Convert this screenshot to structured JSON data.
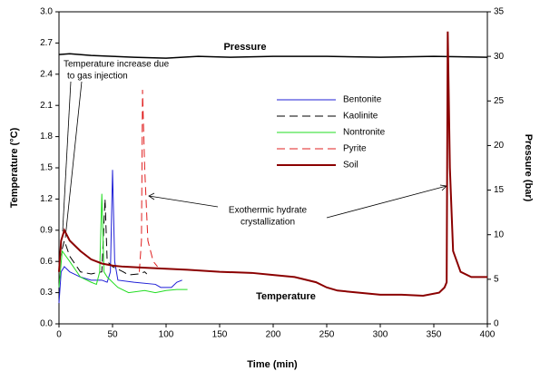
{
  "chart_data": {
    "type": "line",
    "xlabel": "Time (min)",
    "ylabel": "Temperature (°C)",
    "y2label": "Pressure (bar)",
    "xlim": [
      0,
      400
    ],
    "xticks": [
      0,
      50,
      100,
      150,
      200,
      250,
      300,
      350,
      400
    ],
    "ylim": [
      0,
      3
    ],
    "yticks": [
      {
        "value": 0,
        "label": "0.0"
      },
      0.3,
      0.6,
      0.9,
      1.2,
      1.5,
      1.8,
      2.1,
      2.4,
      2.7,
      {
        "value": 3,
        "label": "3.0"
      }
    ],
    "y2lim": [
      0,
      35
    ],
    "y2ticks": [
      0,
      5,
      10,
      15,
      20,
      25,
      30,
      35
    ],
    "legend": "center",
    "series": [
      {
        "name": "Bentonite",
        "color": "#1f1fd6",
        "dash": false,
        "x": [
          0,
          2,
          5,
          10,
          20,
          30,
          40,
          45,
          48,
          50,
          52,
          55,
          70,
          90,
          95,
          105,
          110,
          115
        ],
        "values": [
          0.2,
          0.5,
          0.55,
          0.5,
          0.45,
          0.42,
          0.42,
          0.4,
          0.5,
          1.48,
          0.6,
          0.42,
          0.4,
          0.38,
          0.35,
          0.35,
          0.4,
          0.42
        ]
      },
      {
        "name": "Kaolinite",
        "color": "#000000",
        "dash": true,
        "x": [
          0,
          5,
          10,
          20,
          30,
          40,
          43,
          45,
          50,
          60,
          65,
          75,
          80,
          82
        ],
        "values": [
          0.6,
          0.8,
          0.65,
          0.5,
          0.48,
          0.5,
          1.2,
          0.6,
          0.55,
          0.5,
          0.47,
          0.48,
          0.5,
          0.48
        ]
      },
      {
        "name": "Nontronite",
        "color": "#22dd22",
        "dash": false,
        "x": [
          0,
          3,
          10,
          20,
          30,
          35,
          38,
          40,
          42,
          45,
          55,
          65,
          80,
          90,
          100,
          110,
          120
        ],
        "values": [
          0.35,
          0.7,
          0.6,
          0.45,
          0.4,
          0.38,
          0.5,
          1.25,
          0.5,
          0.45,
          0.35,
          0.3,
          0.32,
          0.3,
          0.32,
          0.33,
          0.33
        ]
      },
      {
        "name": "Pyrite",
        "color": "#e02020",
        "dash": true,
        "x": [
          75,
          77,
          78,
          80,
          83,
          88,
          92
        ],
        "values": [
          0.5,
          0.8,
          2.25,
          1.5,
          0.8,
          0.6,
          0.55
        ]
      },
      {
        "name": "Soil",
        "color": "#8b0000",
        "dash": false,
        "x": [
          0,
          2,
          5,
          10,
          20,
          30,
          40,
          50,
          60,
          80,
          100,
          120,
          150,
          180,
          200,
          220,
          240,
          250,
          260,
          280,
          300,
          320,
          340,
          355,
          360,
          362,
          363,
          365,
          368,
          375,
          385,
          400
        ],
        "values": [
          0.5,
          0.8,
          0.9,
          0.8,
          0.7,
          0.62,
          0.58,
          0.56,
          0.55,
          0.54,
          0.53,
          0.52,
          0.5,
          0.49,
          0.47,
          0.45,
          0.4,
          0.35,
          0.32,
          0.3,
          0.28,
          0.28,
          0.27,
          0.3,
          0.35,
          0.4,
          2.81,
          1.5,
          0.7,
          0.5,
          0.45,
          0.45
        ]
      }
    ],
    "pressure": {
      "label": "Pressure",
      "color": "#000000",
      "axis": "y2",
      "x": [
        0,
        10,
        30,
        50,
        70,
        100,
        130,
        160,
        200,
        250,
        300,
        350,
        400
      ],
      "values": [
        30.2,
        30.3,
        30.1,
        30,
        29.9,
        29.8,
        30,
        29.9,
        30,
        30,
        29.9,
        30,
        29.9
      ]
    },
    "temperature_label": "Temperature",
    "annotations": [
      {
        "lines": [
          "Temperature increase due",
          "to gas injection"
        ]
      },
      {
        "lines": [
          "Exothermic hydrate",
          "crystallization"
        ]
      }
    ]
  }
}
